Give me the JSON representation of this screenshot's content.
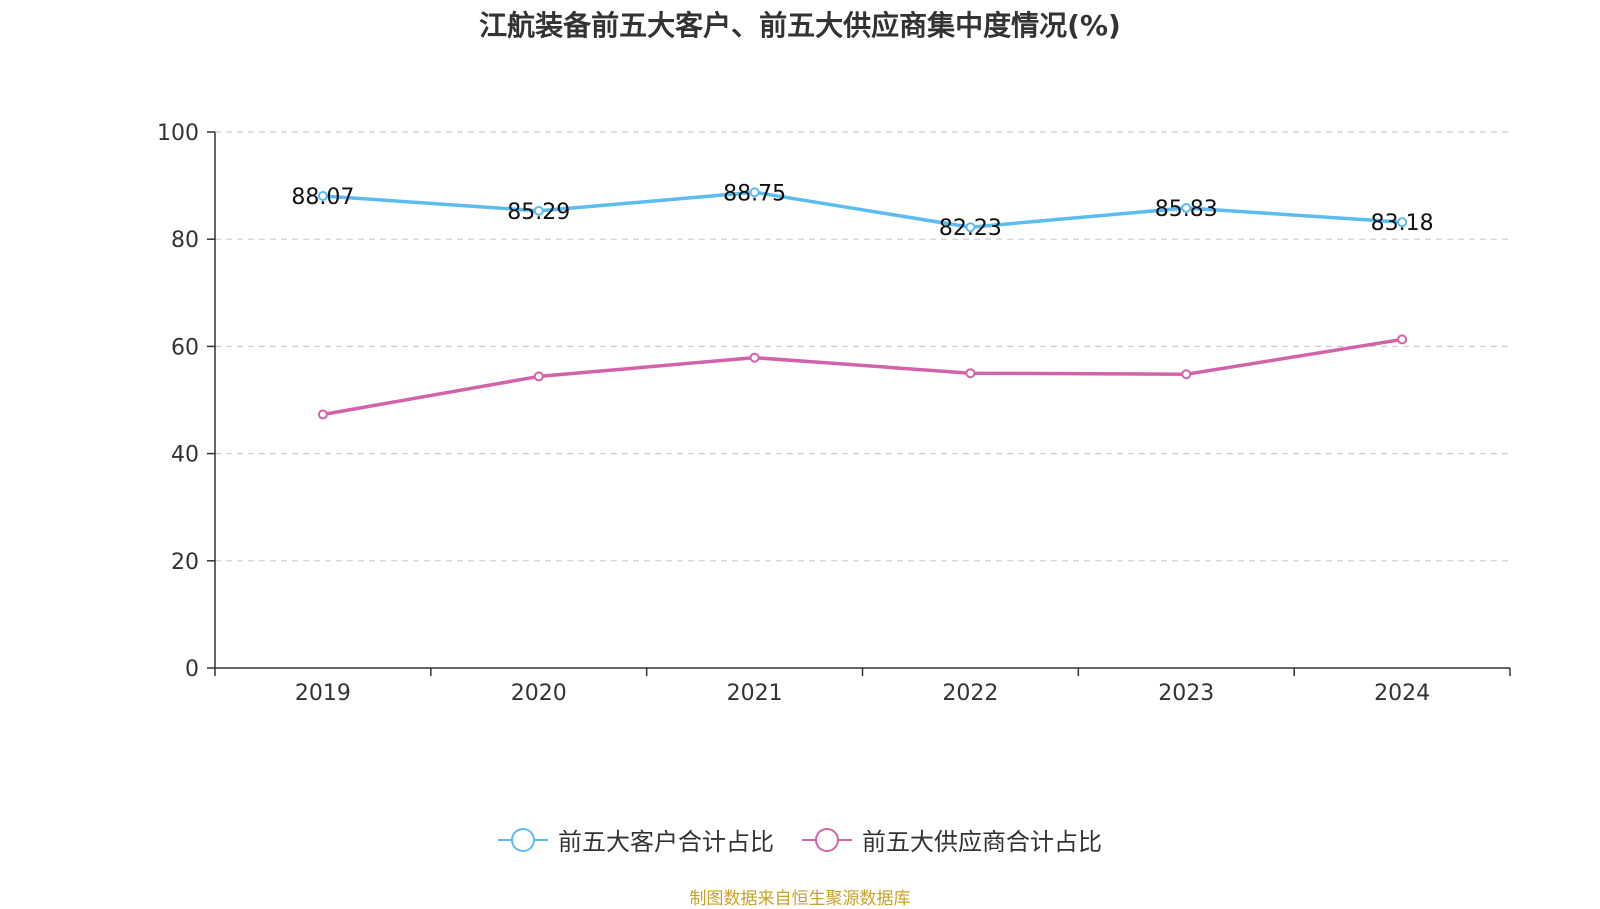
{
  "chart_data": {
    "type": "line",
    "title": "江航装备前五大客户、前五大供应商集中度情况(%)",
    "categories": [
      "2019",
      "2020",
      "2021",
      "2022",
      "2023",
      "2024"
    ],
    "ylim": [
      0,
      100
    ],
    "yticks": [
      "0",
      "20",
      "40",
      "60",
      "80",
      "100"
    ],
    "grid": true,
    "legend_position": "bottom",
    "series": [
      {
        "name": "前五大客户合计占比",
        "color": "#5bbcf0",
        "values": [
          88.07,
          85.29,
          88.75,
          82.23,
          85.83,
          83.18
        ],
        "labels": [
          "88.07",
          "85.29",
          "88.75",
          "82.23",
          "85.83",
          "83.18"
        ]
      },
      {
        "name": "前五大供应商合计占比",
        "color": "#d263a8",
        "values": [
          47.3,
          54.4,
          57.9,
          55.0,
          54.8,
          61.3
        ]
      }
    ],
    "source": "制图数据来自恒生聚源数据库"
  }
}
